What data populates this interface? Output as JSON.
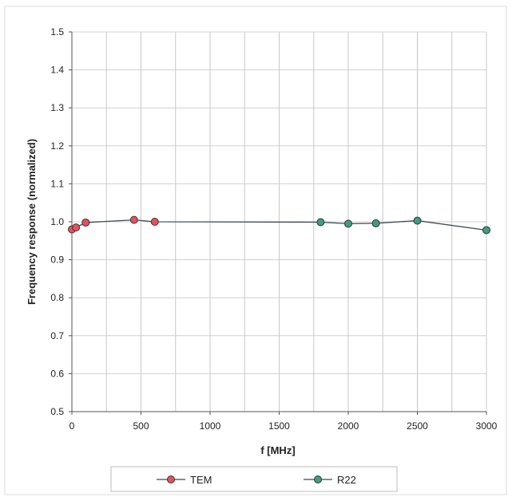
{
  "chart_data": {
    "type": "line",
    "title": "",
    "xlabel": "f [MHz]",
    "ylabel": "Frequency response (normalized)",
    "xlim": [
      0,
      3000
    ],
    "ylim": [
      0.5,
      1.5
    ],
    "x_ticks": [
      0,
      500,
      1000,
      1500,
      2000,
      2500,
      3000
    ],
    "y_ticks": [
      0.5,
      0.6,
      0.7,
      0.8,
      0.9,
      1.0,
      1.1,
      1.2,
      1.3,
      1.4,
      1.5
    ],
    "x_tick_labels": [
      "0",
      "500",
      "1000",
      "1500",
      "2000",
      "2500",
      "3000"
    ],
    "y_tick_labels": [
      "0.5",
      "0.6",
      "0.7",
      "0.8",
      "0.9",
      "1.0",
      "1.1",
      "1.2",
      "1.3",
      "1.4",
      "1.5"
    ],
    "grid": true,
    "legend_position": "bottom",
    "series": [
      {
        "name": "TEM",
        "color": "#e8505b",
        "points": [
          {
            "x": 0,
            "y": 0.98
          },
          {
            "x": 30,
            "y": 0.985
          },
          {
            "x": 100,
            "y": 0.998
          },
          {
            "x": 450,
            "y": 1.005
          },
          {
            "x": 600,
            "y": 1.0
          }
        ]
      },
      {
        "name": "R22",
        "color": "#3e9e82",
        "points": [
          {
            "x": 1800,
            "y": 0.999
          },
          {
            "x": 2000,
            "y": 0.995
          },
          {
            "x": 2200,
            "y": 0.996
          },
          {
            "x": 2500,
            "y": 1.003
          },
          {
            "x": 3000,
            "y": 0.978
          }
        ]
      }
    ]
  }
}
